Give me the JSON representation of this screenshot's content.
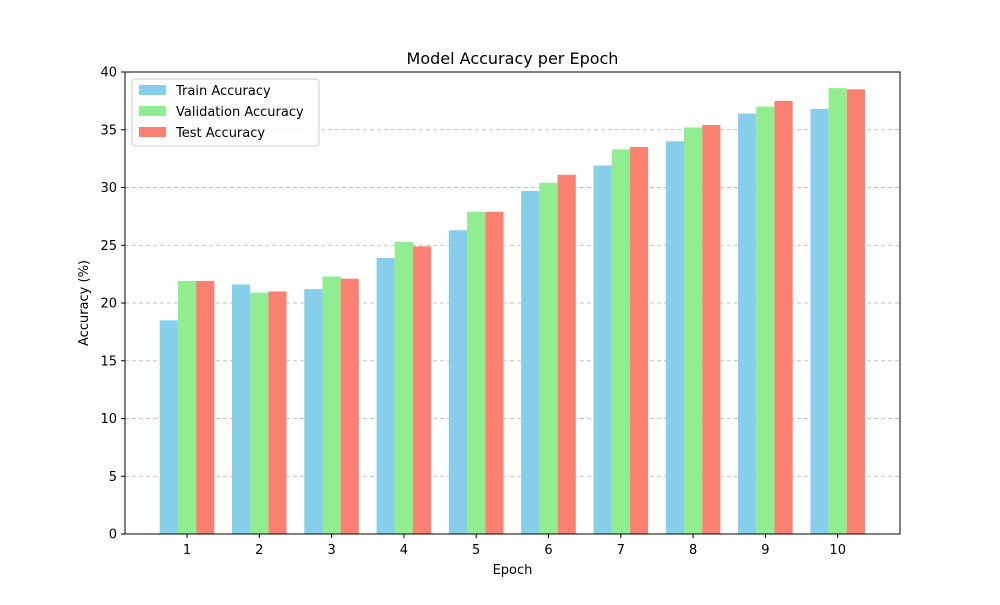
{
  "chart_data": {
    "type": "bar",
    "title": "Model Accuracy per Epoch",
    "xlabel": "Epoch",
    "ylabel": "Accuracy (%)",
    "categories": [
      "1",
      "2",
      "3",
      "4",
      "5",
      "6",
      "7",
      "8",
      "9",
      "10"
    ],
    "series": [
      {
        "name": "Train Accuracy",
        "color": "#87ceeb",
        "values": [
          18.5,
          21.6,
          21.2,
          23.9,
          26.3,
          29.7,
          31.9,
          34.0,
          36.4,
          36.8
        ]
      },
      {
        "name": "Validation Accuracy",
        "color": "#90ee90",
        "values": [
          21.9,
          20.9,
          22.3,
          25.3,
          27.9,
          30.4,
          33.3,
          35.2,
          37.0,
          38.6
        ]
      },
      {
        "name": "Test Accuracy",
        "color": "#fa8072",
        "values": [
          21.9,
          21.0,
          22.1,
          24.9,
          27.9,
          31.1,
          33.5,
          35.4,
          37.5,
          38.5
        ]
      }
    ],
    "ylim": [
      0,
      40
    ],
    "yticks": [
      0,
      5,
      10,
      15,
      20,
      25,
      30,
      35,
      40
    ],
    "grid": {
      "axis": "y",
      "style": "dashed"
    },
    "legend_position": "top-left"
  }
}
